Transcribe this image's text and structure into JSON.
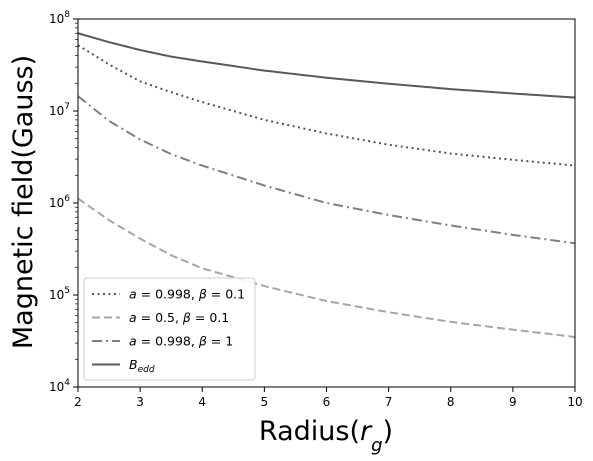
{
  "chart_data": {
    "type": "line",
    "title": "",
    "xlabel": "Radius",
    "xlabel_symbol": "r",
    "xlabel_subscript": "g",
    "ylabel": "Magnetic field(Gauss)",
    "xlim": [
      2,
      10
    ],
    "ylim": [
      10000,
      100000000
    ],
    "yscale": "log",
    "grid": false,
    "legend_position": "lower-left",
    "x_ticks": [
      "2",
      "3",
      "4",
      "5",
      "6",
      "7",
      "8",
      "9",
      "10"
    ],
    "y_ticks": [
      {
        "value": 10000,
        "base": "10",
        "exp": "4"
      },
      {
        "value": 100000,
        "base": "10",
        "exp": "5"
      },
      {
        "value": 1000000,
        "base": "10",
        "exp": "6"
      },
      {
        "value": 10000000,
        "base": "10",
        "exp": "7"
      },
      {
        "value": 100000000,
        "base": "10",
        "exp": "8"
      }
    ],
    "series": [
      {
        "key": "s1",
        "legend": {
          "sym1": "a",
          "val1": " = 0.998, ",
          "sym2": "β",
          "val2": " = 0.1"
        },
        "style": "dotted",
        "color": "#555555",
        "x": [
          2,
          2.5,
          3,
          3.5,
          4,
          5,
          6,
          7,
          8,
          9,
          10
        ],
        "y": [
          52000000,
          32000000,
          21000000,
          16000000,
          12500000,
          8000000,
          5700000,
          4300000,
          3450000,
          2950000,
          2550000
        ]
      },
      {
        "key": "s2",
        "legend": {
          "sym1": "a",
          "val1": " = 0.5, ",
          "sym2": "β",
          "val2": " = 0.1"
        },
        "style": "dashed",
        "color": "#a6a6a6",
        "x": [
          2,
          2.5,
          3,
          3.5,
          4,
          5,
          6,
          7,
          8,
          9,
          10
        ],
        "y": [
          1120000,
          650000,
          410000,
          270000,
          195000,
          125000,
          86000,
          65000,
          51000,
          42000,
          35000
        ]
      },
      {
        "key": "s3",
        "legend": {
          "sym1": "a",
          "val1": " = 0.998, ",
          "sym2": "β",
          "val2": " = 1"
        },
        "style": "dashdot",
        "color": "#7f7f7f",
        "x": [
          2,
          2.5,
          3,
          3.5,
          4,
          5,
          6,
          7,
          8,
          9,
          10
        ],
        "y": [
          14500000,
          7800000,
          4900000,
          3400000,
          2550000,
          1550000,
          1000000,
          740000,
          570000,
          450000,
          365000
        ]
      },
      {
        "key": "s4",
        "legend": {
          "sym1": "B",
          "sub": "edd"
        },
        "style": "solid",
        "color": "#595959",
        "x": [
          2,
          2.5,
          3,
          3.5,
          4,
          5,
          6,
          7,
          8,
          9,
          10
        ],
        "y": [
          70000000,
          56000000,
          46000000,
          39000000,
          34500000,
          27500000,
          23000000,
          19800000,
          17300000,
          15500000,
          14000000
        ]
      }
    ]
  }
}
